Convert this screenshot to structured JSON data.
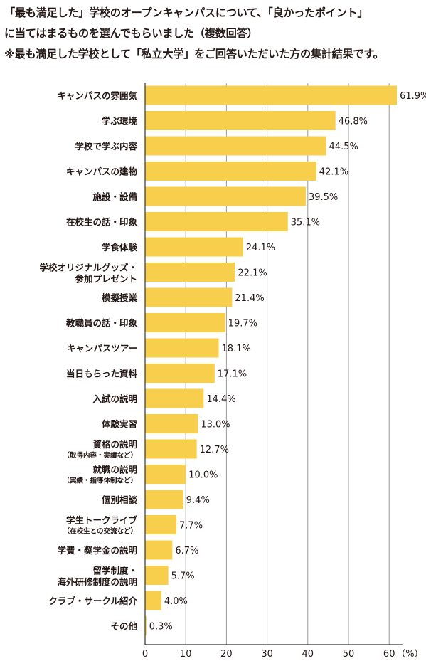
{
  "header": {
    "line1": "「最も満足した」学校のオープンキャンパスについて、「良かったポイント」",
    "line2": "に当てはまるものを選んでもらいました（複数回答）",
    "line3": "※最も満足した学校として「私立大学」をご回答いただいた方の集計結果です。"
  },
  "colors": {
    "bar": "#f7cf4c",
    "grid": "#999999",
    "axis": "#333333",
    "text": "#231815"
  },
  "chart_data": {
    "type": "bar",
    "orientation": "horizontal",
    "categories": [
      "キャンパスの雰囲気",
      "学ぶ環境",
      "学校で学ぶ内容",
      "キャンパスの建物",
      "施設・設備",
      "在校生の話・印象",
      "学食体験",
      "学校オリジナルグッズ・参加プレゼント",
      "模擬授業",
      "教職員の話・印象",
      "キャンパスツアー",
      "当日もらった資料",
      "入試の説明",
      "体験実習",
      "資格の説明（取得内容・実績など）",
      "就職の説明（実績・指導体制など）",
      "個別相談",
      "学生トークライブ（在校生との交流など）",
      "学費・奨学金の説明",
      "留学制度・海外研修制度の説明",
      "クラブ・サークル紹介",
      "その他"
    ],
    "label_lines": [
      {
        "main": [
          "キャンパスの雰囲気"
        ],
        "sub": ""
      },
      {
        "main": [
          "学ぶ環境"
        ],
        "sub": ""
      },
      {
        "main": [
          "学校で学ぶ内容"
        ],
        "sub": ""
      },
      {
        "main": [
          "キャンパスの建物"
        ],
        "sub": ""
      },
      {
        "main": [
          "施設・設備"
        ],
        "sub": ""
      },
      {
        "main": [
          "在校生の話・印象"
        ],
        "sub": ""
      },
      {
        "main": [
          "学食体験"
        ],
        "sub": ""
      },
      {
        "main": [
          "学校オリジナルグッズ・",
          "参加プレゼント"
        ],
        "sub": ""
      },
      {
        "main": [
          "模擬授業"
        ],
        "sub": ""
      },
      {
        "main": [
          "教職員の話・印象"
        ],
        "sub": ""
      },
      {
        "main": [
          "キャンパスツアー"
        ],
        "sub": ""
      },
      {
        "main": [
          "当日もらった資料"
        ],
        "sub": ""
      },
      {
        "main": [
          "入試の説明"
        ],
        "sub": ""
      },
      {
        "main": [
          "体験実習"
        ],
        "sub": ""
      },
      {
        "main": [
          "資格の説明"
        ],
        "sub": "（取得内容・実績など）"
      },
      {
        "main": [
          "就職の説明"
        ],
        "sub": "（実績・指導体制など）"
      },
      {
        "main": [
          "個別相談"
        ],
        "sub": ""
      },
      {
        "main": [
          "学生トークライブ"
        ],
        "sub": "（在校生との交流など）"
      },
      {
        "main": [
          "学費・奨学金の説明"
        ],
        "sub": ""
      },
      {
        "main": [
          "留学制度・",
          "海外研修制度の説明"
        ],
        "sub": ""
      },
      {
        "main": [
          "クラブ・サークル紹介"
        ],
        "sub": ""
      },
      {
        "main": [
          "その他"
        ],
        "sub": ""
      }
    ],
    "values": [
      61.9,
      46.8,
      44.5,
      42.1,
      39.5,
      35.1,
      24.1,
      22.1,
      21.4,
      19.7,
      18.1,
      17.1,
      14.4,
      13.0,
      12.7,
      10.0,
      9.4,
      7.7,
      6.7,
      5.7,
      4.0,
      0.3
    ],
    "value_labels": [
      "61.9%",
      "46.8%",
      "44.5%",
      "42.1%",
      "39.5%",
      "35.1%",
      "24.1%",
      "22.1%",
      "21.4%",
      "19.7%",
      "18.1%",
      "17.1%",
      "14.4%",
      "13.0%",
      "12.7%",
      "10.0%",
      "9.4%",
      "7.7%",
      "6.7%",
      "5.7%",
      "4.0%",
      "0.3%"
    ],
    "xticks": [
      0,
      10,
      20,
      30,
      40,
      50,
      60
    ],
    "xtick_labels": [
      "0",
      "10",
      "20",
      "30",
      "40",
      "50",
      "60"
    ],
    "x_unit": "（%）",
    "xlim": [
      0,
      65
    ],
    "grid": true
  }
}
